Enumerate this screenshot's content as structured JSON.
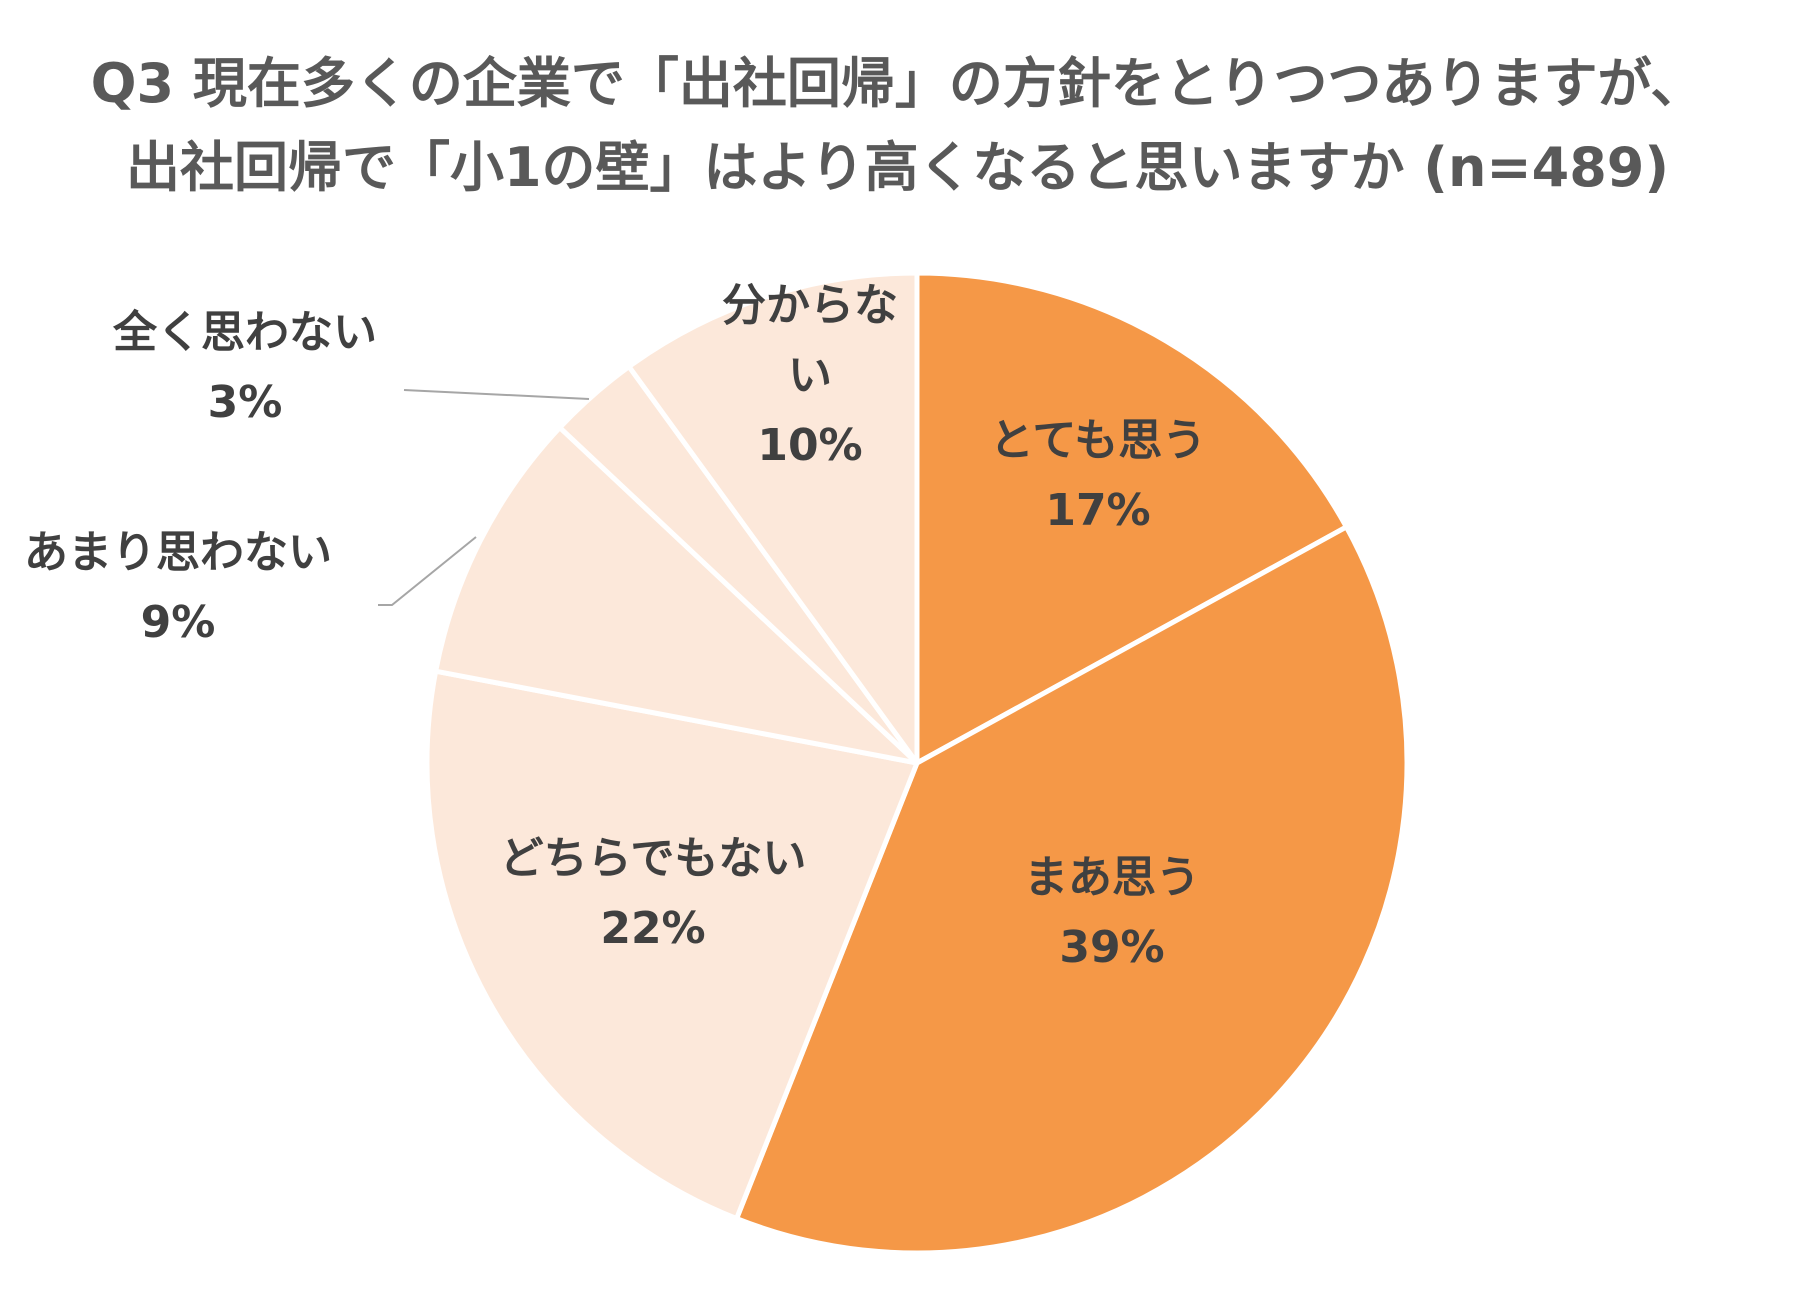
{
  "chart_data": {
    "type": "pie",
    "title": [
      "Q3 現在多くの企業で「出社回帰」の方針をとりつつありますが、",
      "出社回帰で「小1の壁」はより高くなると思いますか (n=489)"
    ],
    "slices": [
      {
        "label": [
          "とても思う"
        ],
        "value": 17,
        "value_label": "17%",
        "color": "#F59847"
      },
      {
        "label": [
          "まあ思う"
        ],
        "value": 39,
        "value_label": "39%",
        "color": "#F59847"
      },
      {
        "label": [
          "どちらでもない"
        ],
        "value": 22,
        "value_label": "22%",
        "color": "#FCE8DA"
      },
      {
        "label": [
          "あまり思わない"
        ],
        "value": 9,
        "value_label": "9%",
        "color": "#FCE8DA"
      },
      {
        "label": [
          "全く思わない"
        ],
        "value": 3,
        "value_label": "3%",
        "color": "#FCE8DA"
      },
      {
        "label": [
          "分からな",
          "い"
        ],
        "value": 10,
        "value_label": "10%",
        "color": "#FCE8DA"
      }
    ],
    "start_angle_deg": 0,
    "direction": "clockwise",
    "slice_border_color": "#FFFFFF",
    "legend": "none",
    "data_labels": "category-and-percent"
  }
}
